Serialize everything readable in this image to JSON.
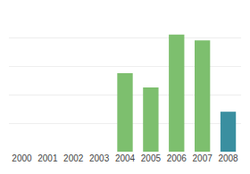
{
  "chart_data": {
    "type": "bar",
    "categories": [
      "2000",
      "2001",
      "2002",
      "2003",
      "2004",
      "2005",
      "2006",
      "2007",
      "2008"
    ],
    "values": [
      0,
      0,
      0,
      0,
      55,
      45,
      82,
      78,
      28
    ],
    "colors": [
      "#7dbf6e",
      "#7dbf6e",
      "#7dbf6e",
      "#7dbf6e",
      "#7dbf6e",
      "#7dbf6e",
      "#7dbf6e",
      "#7dbf6e",
      "#3a8fa0"
    ],
    "ylim": [
      0,
      100
    ],
    "yticks": [
      0,
      20,
      40,
      60,
      80,
      100
    ],
    "grid": true,
    "tick_labels": "x"
  }
}
